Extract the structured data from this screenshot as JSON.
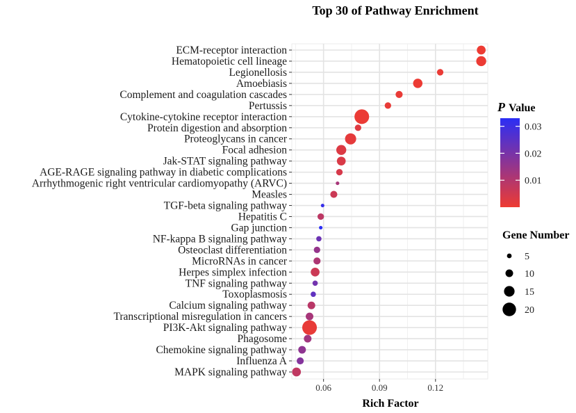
{
  "chart_data": {
    "type": "scatter",
    "title": "Top 30 of Pathway Enrichment",
    "xlabel": "Rich Factor",
    "ylabel": "",
    "xlim": [
      0.043,
      0.148
    ],
    "x_ticks": [
      0.06,
      0.09,
      0.12
    ],
    "x_tick_labels": [
      "0.06",
      "0.09",
      "0.12"
    ],
    "grid": true,
    "color_legend": {
      "title_symbol": "P",
      "title_rest": "Value",
      "low_color": "#ee3b32",
      "high_color": "#2b2ef5",
      "min": 0.0,
      "max": 0.033,
      "ticks": [
        0.01,
        0.02,
        0.03
      ],
      "tick_labels": [
        "0.01",
        "0.02",
        "0.03"
      ]
    },
    "size_legend": {
      "title": "Gene Number",
      "values": [
        5,
        10,
        15,
        20
      ],
      "labels": [
        "5",
        "10",
        "15",
        "20"
      ]
    },
    "points": [
      {
        "pathway": "ECM-receptor interaction",
        "rich_factor": 0.1445,
        "gene_number": 12,
        "p_value": 0.0002
      },
      {
        "pathway": "Hematopoietic cell lineage",
        "rich_factor": 0.1445,
        "gene_number": 14,
        "p_value": 0.0003
      },
      {
        "pathway": "Legionellosis",
        "rich_factor": 0.1225,
        "gene_number": 8,
        "p_value": 0.0006
      },
      {
        "pathway": "Amoebiasis",
        "rich_factor": 0.1105,
        "gene_number": 13,
        "p_value": 0.0004
      },
      {
        "pathway": "Complement and coagulation cascades",
        "rich_factor": 0.1005,
        "gene_number": 9,
        "p_value": 0.0008
      },
      {
        "pathway": "Pertussis",
        "rich_factor": 0.0945,
        "gene_number": 8,
        "p_value": 0.001
      },
      {
        "pathway": "Cytokine-cytokine receptor interaction",
        "rich_factor": 0.0805,
        "gene_number": 22,
        "p_value": 0.0005
      },
      {
        "pathway": "Protein digestion and absorption",
        "rich_factor": 0.0785,
        "gene_number": 8,
        "p_value": 0.0025
      },
      {
        "pathway": "Proteoglycans in cancer",
        "rich_factor": 0.0745,
        "gene_number": 16,
        "p_value": 0.0015
      },
      {
        "pathway": "Focal adhesion",
        "rich_factor": 0.0695,
        "gene_number": 14,
        "p_value": 0.003
      },
      {
        "pathway": "Jak-STAT signaling pathway",
        "rich_factor": 0.0695,
        "gene_number": 12,
        "p_value": 0.0035
      },
      {
        "pathway": "AGE-RAGE signaling pathway in diabetic complications",
        "rich_factor": 0.0685,
        "gene_number": 8,
        "p_value": 0.004
      },
      {
        "pathway": "Arrhythmogenic right ventricular cardiomyopathy (ARVC)",
        "rich_factor": 0.0675,
        "gene_number": 3,
        "p_value": 0.012
      },
      {
        "pathway": "Measles",
        "rich_factor": 0.0655,
        "gene_number": 9,
        "p_value": 0.006
      },
      {
        "pathway": "TGF-beta signaling pathway",
        "rich_factor": 0.0595,
        "gene_number": 3,
        "p_value": 0.031
      },
      {
        "pathway": "Hepatitis C",
        "rich_factor": 0.0585,
        "gene_number": 8,
        "p_value": 0.0085
      },
      {
        "pathway": "Gap junction",
        "rich_factor": 0.0585,
        "gene_number": 3,
        "p_value": 0.033
      },
      {
        "pathway": "NF-kappa B signaling pathway",
        "rich_factor": 0.0575,
        "gene_number": 6,
        "p_value": 0.022
      },
      {
        "pathway": "Osteoclast differentiation",
        "rich_factor": 0.0565,
        "gene_number": 8,
        "p_value": 0.015
      },
      {
        "pathway": "MicroRNAs in cancer",
        "rich_factor": 0.0565,
        "gene_number": 9,
        "p_value": 0.011
      },
      {
        "pathway": "Herpes simplex infection",
        "rich_factor": 0.0555,
        "gene_number": 12,
        "p_value": 0.006
      },
      {
        "pathway": "TNF signaling pathway",
        "rich_factor": 0.0555,
        "gene_number": 6,
        "p_value": 0.021
      },
      {
        "pathway": "Toxoplasmosis",
        "rich_factor": 0.0545,
        "gene_number": 6,
        "p_value": 0.024
      },
      {
        "pathway": "Calcium signaling pathway",
        "rich_factor": 0.0535,
        "gene_number": 10,
        "p_value": 0.009
      },
      {
        "pathway": "Transcriptional misregulation in cancers",
        "rich_factor": 0.0525,
        "gene_number": 10,
        "p_value": 0.012
      },
      {
        "pathway": "PI3K-Akt signaling pathway",
        "rich_factor": 0.0525,
        "gene_number": 22,
        "p_value": 0.001
      },
      {
        "pathway": "Phagosome",
        "rich_factor": 0.0515,
        "gene_number": 10,
        "p_value": 0.013
      },
      {
        "pathway": "Chemokine signaling pathway",
        "rich_factor": 0.0485,
        "gene_number": 10,
        "p_value": 0.016
      },
      {
        "pathway": "Influenza A",
        "rich_factor": 0.0475,
        "gene_number": 9,
        "p_value": 0.018
      },
      {
        "pathway": "MAPK signaling pathway",
        "rich_factor": 0.0455,
        "gene_number": 12,
        "p_value": 0.008
      }
    ]
  }
}
